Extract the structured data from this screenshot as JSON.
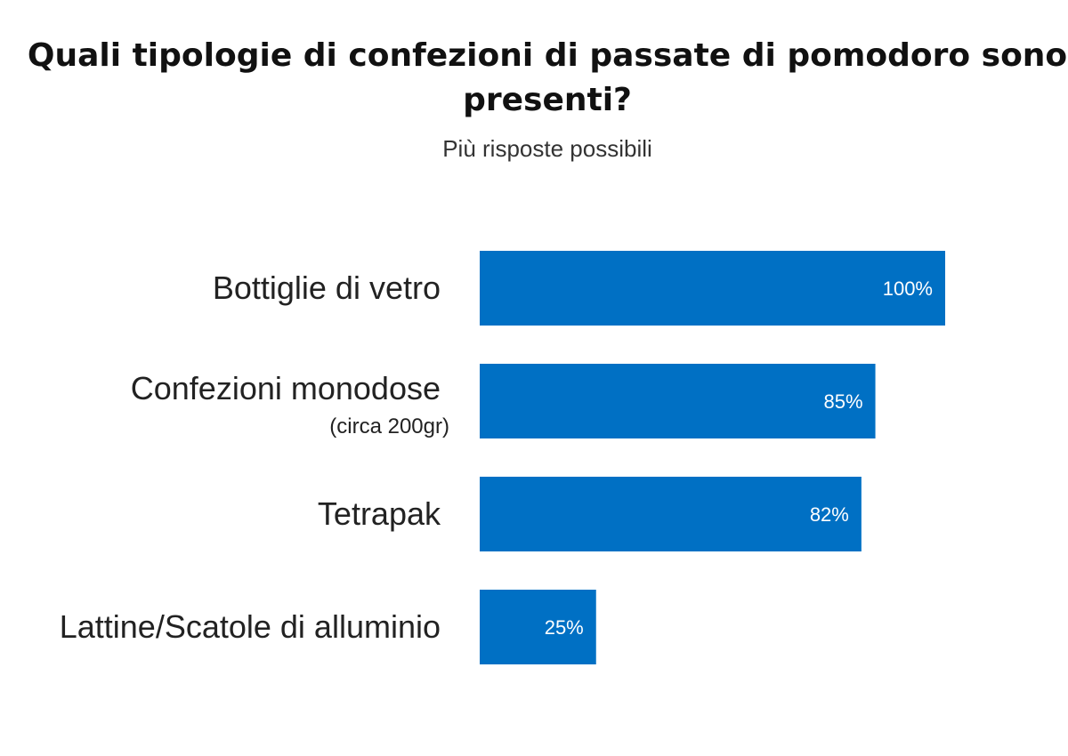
{
  "title": "Quali tipologie di confezioni di passate di pomodoro sono presenti?",
  "subtitle": "Più risposte possibili",
  "colors": {
    "bar": "#0070C4"
  },
  "chart_data": {
    "type": "bar",
    "orientation": "horizontal",
    "categories": [
      "Bottiglie di vetro",
      "Confezioni monodose",
      "Tetrapak",
      "Lattine/Scatole di alluminio"
    ],
    "category_notes": [
      "",
      "(circa 200gr)",
      "",
      ""
    ],
    "values": [
      100,
      85,
      82,
      25
    ],
    "value_labels": [
      "100%",
      "85%",
      "82%",
      "25%"
    ],
    "xlim": [
      0,
      100
    ],
    "grid": false,
    "legend": "none"
  }
}
